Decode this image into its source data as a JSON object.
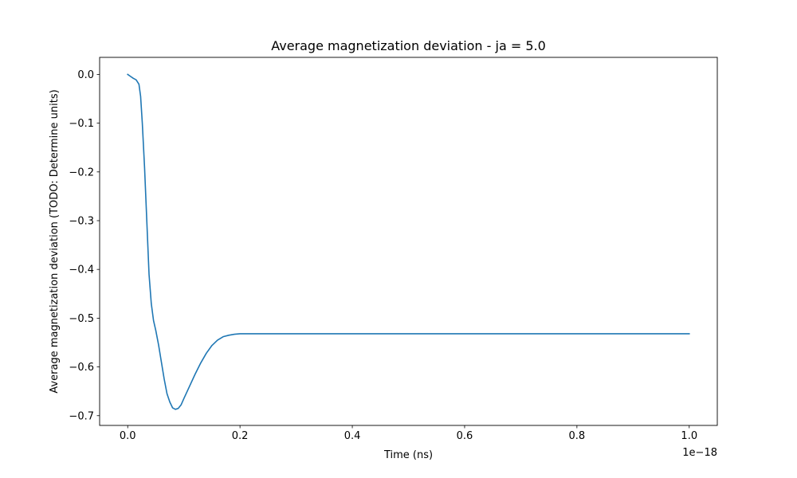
{
  "chart_data": {
    "type": "line",
    "title": "Average magnetization deviation - ja = 5.0",
    "xlabel": "Time (ns)",
    "ylabel": "Average magnetization deviation (TODO: Determine units)",
    "x_offset_label": "1e−18",
    "x_scale": 1e-18,
    "xlim": [
      -0.05,
      1.05
    ],
    "ylim": [
      -0.72,
      0.035
    ],
    "xticks": [
      0.0,
      0.2,
      0.4,
      0.6,
      0.8,
      1.0
    ],
    "xtick_labels": [
      "0.0",
      "0.2",
      "0.4",
      "0.6",
      "0.8",
      "1.0"
    ],
    "yticks": [
      0.0,
      -0.1,
      -0.2,
      -0.3,
      -0.4,
      -0.5,
      -0.6,
      -0.7
    ],
    "ytick_labels": [
      "0.0",
      "−0.1",
      "−0.2",
      "−0.3",
      "−0.4",
      "−0.5",
      "−0.6",
      "−0.7"
    ],
    "grid": false,
    "legend": "none",
    "series": [
      {
        "color": "#1f77b4",
        "x": [
          0.0,
          0.005,
          0.01,
          0.015,
          0.02,
          0.023,
          0.026,
          0.03,
          0.034,
          0.038,
          0.042,
          0.046,
          0.05,
          0.055,
          0.06,
          0.065,
          0.07,
          0.075,
          0.08,
          0.085,
          0.09,
          0.095,
          0.1,
          0.11,
          0.12,
          0.13,
          0.14,
          0.15,
          0.16,
          0.17,
          0.18,
          0.19,
          0.2,
          0.22,
          0.25,
          0.3,
          0.4,
          0.5,
          0.6,
          0.7,
          0.8,
          0.9,
          1.0
        ],
        "y": [
          0.0,
          -0.004,
          -0.008,
          -0.011,
          -0.02,
          -0.045,
          -0.1,
          -0.19,
          -0.3,
          -0.41,
          -0.47,
          -0.505,
          -0.525,
          -0.555,
          -0.59,
          -0.625,
          -0.655,
          -0.672,
          -0.684,
          -0.687,
          -0.685,
          -0.678,
          -0.665,
          -0.64,
          -0.615,
          -0.592,
          -0.572,
          -0.556,
          -0.545,
          -0.538,
          -0.535,
          -0.533,
          -0.532,
          -0.532,
          -0.532,
          -0.532,
          -0.532,
          -0.532,
          -0.532,
          -0.532,
          -0.532,
          -0.532,
          -0.532
        ]
      }
    ]
  }
}
